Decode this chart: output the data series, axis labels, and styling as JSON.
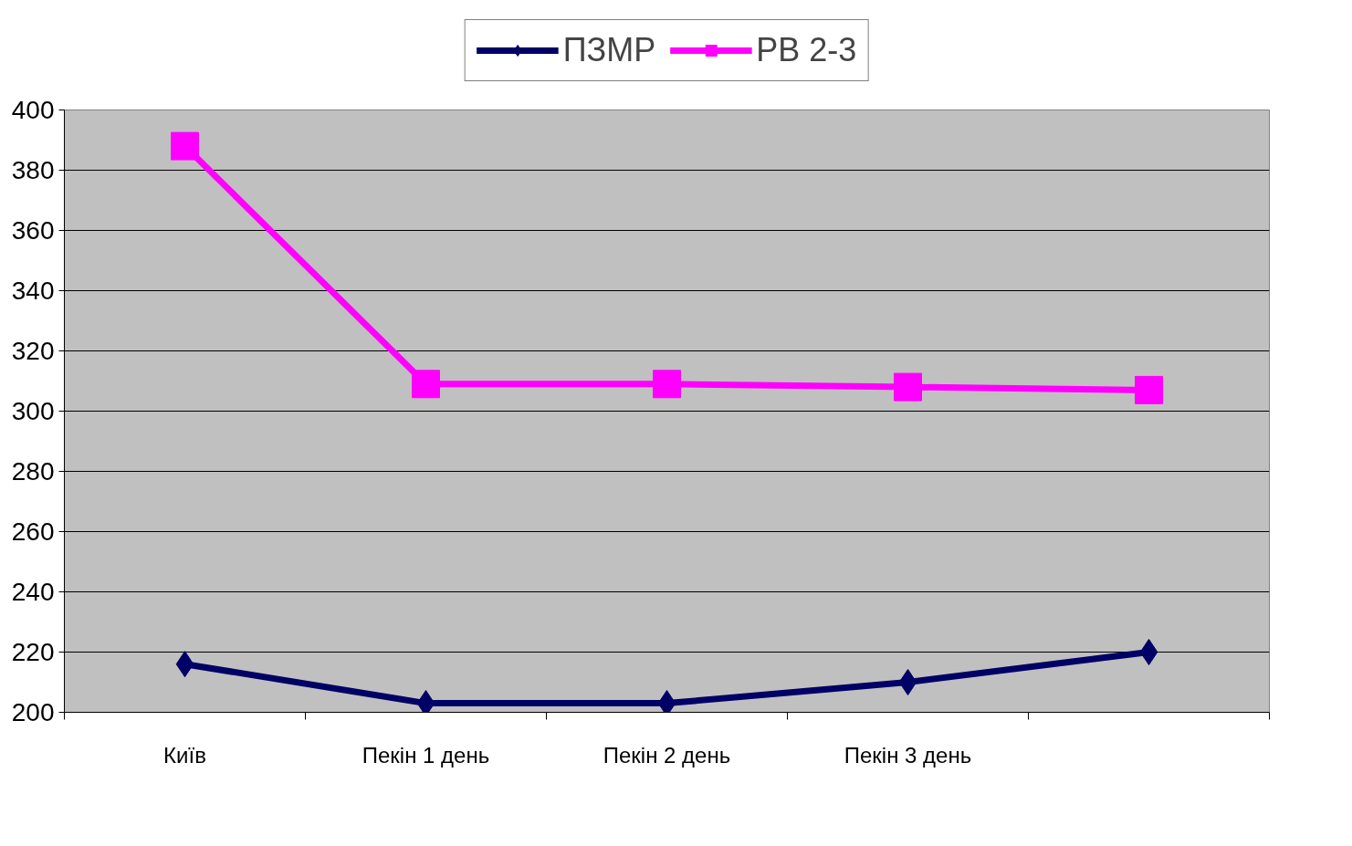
{
  "chart_data": {
    "type": "line",
    "categories": [
      "Київ",
      "Пекін 1 день",
      "Пекін 2 день",
      "Пекін 3 день",
      null
    ],
    "series": [
      {
        "name": "ПЗМР",
        "color": "#000066",
        "marker": "diamond",
        "values": [
          216,
          203,
          203,
          210,
          220
        ]
      },
      {
        "name": "РВ 2-3",
        "color": "#ff00ff",
        "marker": "square",
        "values": [
          388,
          309,
          309,
          308,
          307
        ]
      }
    ],
    "ylim": [
      200,
      400
    ],
    "yticks": [
      200,
      220,
      240,
      260,
      280,
      300,
      320,
      340,
      360,
      380,
      400
    ],
    "grid": "y",
    "legend": "top"
  }
}
